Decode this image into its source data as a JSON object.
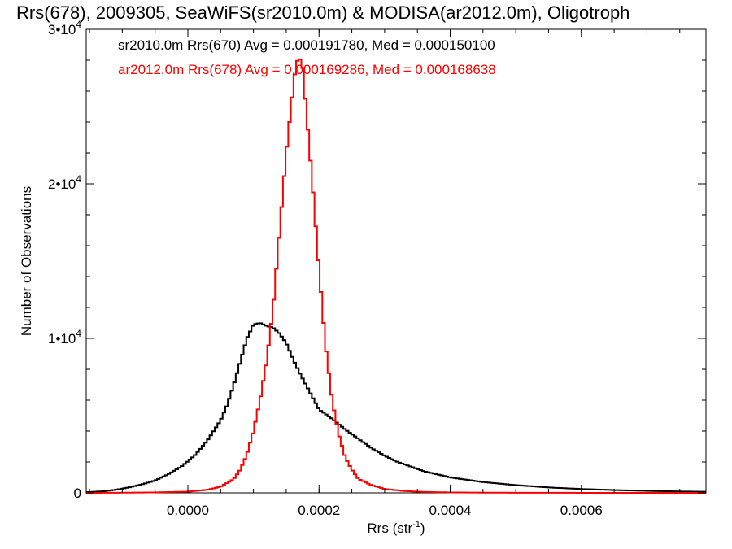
{
  "chart_data": {
    "type": "histogram",
    "title": "Rrs(678), 2009305, SeaWiFS(sr2010.0m) & MODISA(ar2012.0m), Oligotroph",
    "xlabel": "Rrs (str",
    "xlabel_sup": "-1",
    "xlabel_close": ")",
    "ylabel": "Number of Observations",
    "xlim": [
      -0.000155,
      0.00079
    ],
    "ylim": [
      0,
      30000
    ],
    "x_ticks": [
      {
        "value": 0.0,
        "label": "0.0000"
      },
      {
        "value": 0.0002,
        "label": "0.0002"
      },
      {
        "value": 0.0004,
        "label": "0.0004"
      },
      {
        "value": 0.0006,
        "label": "0.0006"
      }
    ],
    "y_ticks": [
      {
        "value": 0,
        "label": "0",
        "sup": ""
      },
      {
        "value": 10000,
        "label": "1•10",
        "sup": "4"
      },
      {
        "value": 20000,
        "label": "2•10",
        "sup": "4"
      },
      {
        "value": 30000,
        "label": "3•10",
        "sup": "4"
      }
    ],
    "grid": false,
    "legend_position": "top-left",
    "series": [
      {
        "name": "sr2010.0m Rrs(670) Avg = 0.000191780, Med = 0.000150100",
        "color": "#000000",
        "x": [
          -0.00015,
          -0.00013,
          -0.00011,
          -9e-05,
          -7e-05,
          -5e-05,
          -3e-05,
          -1e-05,
          1e-05,
          3e-05,
          5e-05,
          6e-05,
          7e-05,
          8e-05,
          9e-05,
          0.0001,
          0.00011,
          0.00012,
          0.00013,
          0.00014,
          0.00015,
          0.00016,
          0.00017,
          0.00018,
          0.00019,
          0.0002,
          0.00022,
          0.00024,
          0.00026,
          0.00028,
          0.0003,
          0.00032,
          0.00034,
          0.00036,
          0.00038,
          0.0004,
          0.00045,
          0.0005,
          0.00055,
          0.0006,
          0.00065,
          0.0007,
          0.00075,
          0.00079
        ],
        "y": [
          50,
          100,
          200,
          350,
          550,
          800,
          1200,
          1700,
          2400,
          3400,
          4700,
          5700,
          7000,
          8500,
          10000,
          10900,
          11000,
          10800,
          10700,
          10300,
          9700,
          8700,
          7800,
          7000,
          6200,
          5400,
          4800,
          4100,
          3500,
          2900,
          2400,
          2000,
          1700,
          1400,
          1200,
          1000,
          700,
          500,
          350,
          250,
          180,
          130,
          90,
          70
        ]
      },
      {
        "name": "ar2012.0m Rrs(678) Avg = 0.000169286, Med = 0.000168638",
        "color": "#ff0000",
        "x": [
          -0.00015,
          -0.0001,
          -5e-05,
          0.0,
          3e-05,
          5e-05,
          7e-05,
          8e-05,
          9e-05,
          0.0001,
          0.00011,
          0.00012,
          0.00013,
          0.00014,
          0.00015,
          0.00016,
          0.000165,
          0.00017,
          0.000175,
          0.00018,
          0.00019,
          0.0002,
          0.00021,
          0.00022,
          0.00023,
          0.00024,
          0.00025,
          0.00026,
          0.00028,
          0.0003,
          0.00033,
          0.00036,
          0.0004,
          0.00045,
          0.0005,
          0.0006,
          0.0007,
          0.00079
        ],
        "y": [
          0,
          10,
          30,
          80,
          200,
          400,
          900,
          1500,
          2500,
          4000,
          6000,
          8500,
          12000,
          17000,
          22000,
          26000,
          27800,
          28200,
          27500,
          25000,
          20000,
          14500,
          9500,
          6000,
          3800,
          2300,
          1500,
          900,
          500,
          250,
          120,
          60,
          30,
          15,
          8,
          3,
          1,
          0
        ]
      }
    ]
  }
}
